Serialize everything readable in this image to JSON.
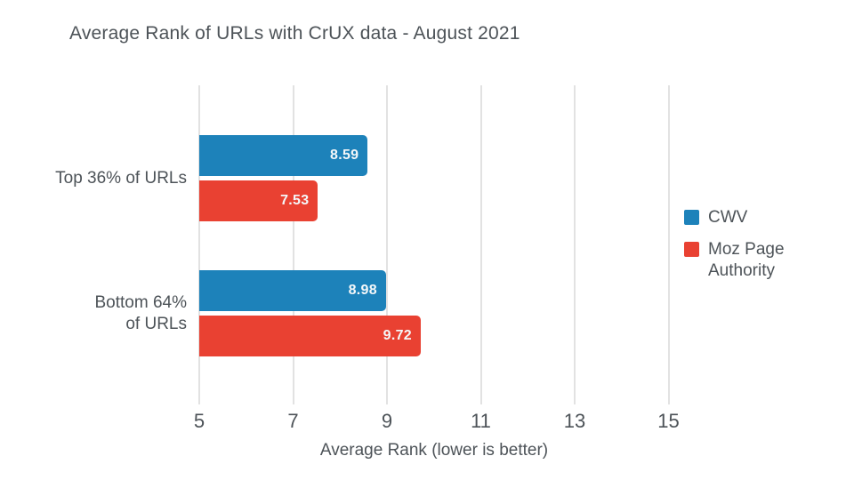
{
  "chart_data": {
    "type": "bar",
    "orientation": "horizontal",
    "title": "Average Rank of URLs with CrUX data - August 2021",
    "xlabel": "Average Rank (lower is better)",
    "categories": [
      "Top 36% of URLs",
      "Bottom 64% of URLs"
    ],
    "category_label_lines": [
      [
        "Top 36% of URLs"
      ],
      [
        "Bottom 64%",
        "of URLs"
      ]
    ],
    "series": [
      {
        "name": "CWV",
        "color": "#1d82ba",
        "values": [
          8.59,
          8.98
        ]
      },
      {
        "name": "Moz Page Authority",
        "color": "#e94132",
        "values": [
          7.53,
          9.72
        ]
      }
    ],
    "value_labels": [
      [
        "8.59",
        "8.98"
      ],
      [
        "7.53",
        "9.72"
      ]
    ],
    "xticks": [
      "5",
      "7",
      "9",
      "11",
      "13",
      "15"
    ],
    "xtick_values": [
      5,
      7,
      9,
      11,
      13,
      15
    ],
    "xlim": [
      5,
      16
    ],
    "grid": "vertical",
    "legend_position": "right",
    "colors": {
      "background": "#ffffff",
      "text": "#4d5358",
      "gridline": "#e2e2e2",
      "bar_value_text": "#f4f7f9"
    }
  }
}
